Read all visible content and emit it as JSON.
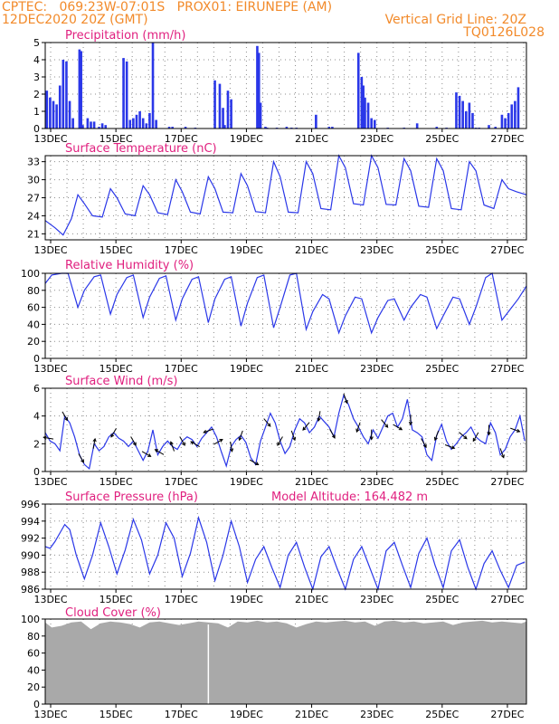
{
  "header": {
    "line1_left": "CPTEC:   069:23W-07:01S   PROX01: EIRUNEPE (AM)",
    "line2_left": "12DEC2020 20Z (GMT)",
    "line2_right": "Vertical Grid Line: 20Z",
    "line3_right": "TQ0126L028"
  },
  "colors": {
    "header": "#f28a2a",
    "title": "#e0207f",
    "series": "#2a37e8",
    "cloud": "#a9a9a9",
    "grid": "#8c8c8c",
    "wind_arrow": "#000000"
  },
  "x_axis": {
    "start": "12DEC2020 20Z",
    "end": "27DEC",
    "tick_labels": [
      "13DEC",
      "15DEC",
      "17DEC",
      "19DEC",
      "21DEC",
      "23DEC",
      "25DEC",
      "27DEC"
    ]
  },
  "chart_data": [
    {
      "id": "precip",
      "type": "bar",
      "title": "Precipitation (mm/h)",
      "ylim": [
        0,
        5
      ],
      "yticks": [
        0,
        1,
        2,
        3,
        4,
        5
      ],
      "grid": true,
      "x_units": "days since 12DEC2020 20Z",
      "x": [
        0.05,
        0.15,
        0.25,
        0.35,
        0.45,
        0.55,
        0.65,
        0.75,
        0.85,
        1.05,
        1.1,
        1.15,
        1.3,
        1.4,
        1.5,
        1.65,
        1.75,
        1.85,
        2.4,
        2.5,
        2.6,
        2.7,
        2.8,
        2.9,
        3.0,
        3.1,
        3.2,
        3.3,
        3.4,
        3.8,
        3.9,
        4.3,
        4.6,
        5.2,
        5.35,
        5.45,
        5.5,
        5.6,
        5.7,
        6.5,
        6.55,
        6.6,
        6.75,
        6.8,
        7.1,
        7.4,
        7.55,
        7.7,
        8.3,
        8.7,
        8.8,
        9.6,
        9.7,
        9.75,
        9.8,
        9.9,
        10.0,
        10.1,
        10.5,
        11.0,
        11.4,
        12.0,
        12.3,
        12.6,
        12.7,
        12.8,
        12.9,
        13.0,
        13.1,
        13.2,
        13.3,
        13.6,
        13.8,
        14.0,
        14.1,
        14.2,
        14.3,
        14.4,
        14.5
      ],
      "values": [
        2.2,
        1.8,
        1.6,
        1.4,
        2.5,
        4.0,
        3.9,
        1.6,
        0.6,
        4.6,
        4.5,
        0.2,
        0.6,
        0.4,
        0.4,
        0.1,
        0.3,
        0.2,
        4.1,
        3.9,
        0.5,
        0.6,
        0.8,
        1.0,
        0.6,
        0.3,
        0.9,
        5.0,
        0.5,
        0.1,
        0.1,
        0.1,
        0.05,
        2.8,
        2.6,
        1.2,
        0.2,
        2.2,
        1.7,
        4.8,
        4.4,
        1.5,
        0.1,
        0.05,
        0.05,
        0.1,
        0.05,
        0.05,
        0.8,
        0.1,
        0.1,
        4.4,
        3.0,
        2.5,
        1.8,
        1.5,
        0.6,
        0.5,
        0.05,
        0.05,
        0.3,
        0.1,
        0.05,
        2.1,
        1.9,
        1.6,
        1.0,
        1.5,
        0.9,
        0.05,
        0.05,
        0.2,
        0.1,
        0.8,
        0.6,
        0.9,
        1.4,
        1.6,
        2.4
      ]
    },
    {
      "id": "temp",
      "type": "line",
      "title": "Surface Temperature (nC)",
      "ylim": [
        20,
        34
      ],
      "yticks": [
        21,
        24,
        27,
        30,
        33
      ],
      "grid": true,
      "x_units": "days since 12DEC2020 20Z",
      "x": [
        0,
        0.3,
        0.55,
        0.8,
        1.0,
        1.2,
        1.45,
        1.75,
        2.0,
        2.2,
        2.45,
        2.75,
        3.0,
        3.2,
        3.45,
        3.75,
        4.0,
        4.2,
        4.45,
        4.75,
        5.0,
        5.2,
        5.45,
        5.75,
        6.0,
        6.2,
        6.45,
        6.75,
        7.0,
        7.2,
        7.45,
        7.75,
        8.0,
        8.2,
        8.45,
        8.75,
        9.0,
        9.2,
        9.45,
        9.75,
        10.0,
        10.2,
        10.45,
        10.75,
        11.0,
        11.2,
        11.45,
        11.75,
        12.0,
        12.2,
        12.45,
        12.75,
        13.0,
        13.2,
        13.45,
        13.75,
        14.0,
        14.2,
        14.45,
        14.75
      ],
      "values": [
        23.2,
        22.0,
        20.8,
        23.5,
        27.5,
        26.0,
        24.0,
        23.8,
        28.5,
        27.0,
        24.3,
        24.0,
        29.0,
        27.5,
        24.5,
        24.2,
        30.0,
        28.0,
        24.6,
        24.3,
        30.5,
        28.5,
        24.6,
        24.5,
        31.0,
        29.0,
        24.7,
        24.5,
        33.0,
        30.5,
        24.6,
        24.5,
        33.0,
        31.0,
        25.2,
        25.0,
        34.0,
        32.0,
        26.0,
        25.8,
        34.0,
        32.0,
        25.9,
        25.8,
        33.5,
        31.5,
        25.6,
        25.4,
        33.5,
        31.5,
        25.2,
        25.0,
        33.0,
        31.5,
        25.8,
        25.2,
        30.0,
        28.5,
        28.0,
        27.5
      ]
    },
    {
      "id": "rh",
      "type": "line",
      "title": "Relative Humidity (%)",
      "ylim": [
        0,
        100
      ],
      "yticks": [
        0,
        20,
        40,
        60,
        80,
        100
      ],
      "grid": true,
      "x_units": "days since 12DEC2020 20Z",
      "x": [
        0,
        0.2,
        0.5,
        0.7,
        1.0,
        1.2,
        1.5,
        1.7,
        2.0,
        2.2,
        2.5,
        2.7,
        3.0,
        3.2,
        3.5,
        3.7,
        4.0,
        4.2,
        4.5,
        4.7,
        5.0,
        5.2,
        5.5,
        5.7,
        6.0,
        6.2,
        6.5,
        6.7,
        7.0,
        7.2,
        7.5,
        7.7,
        8.0,
        8.2,
        8.5,
        8.7,
        9.0,
        9.2,
        9.5,
        9.7,
        10.0,
        10.2,
        10.5,
        10.7,
        11.0,
        11.2,
        11.5,
        11.7,
        12.0,
        12.2,
        12.5,
        12.7,
        13.0,
        13.2,
        13.5,
        13.7,
        14.0,
        14.2,
        14.5,
        14.75
      ],
      "values": [
        88,
        98,
        100,
        100,
        60,
        80,
        96,
        98,
        52,
        75,
        95,
        98,
        48,
        72,
        94,
        97,
        45,
        70,
        93,
        96,
        42,
        70,
        93,
        96,
        38,
        65,
        95,
        98,
        36,
        60,
        98,
        100,
        34,
        55,
        75,
        70,
        30,
        50,
        72,
        70,
        30,
        48,
        68,
        70,
        45,
        60,
        75,
        72,
        35,
        50,
        72,
        70,
        40,
        60,
        95,
        100,
        45,
        55,
        70,
        85
      ]
    },
    {
      "id": "wind",
      "type": "line",
      "title": "Surface Wind (m/s)",
      "ylim": [
        0,
        6
      ],
      "yticks": [
        0,
        2,
        4,
        6
      ],
      "grid": true,
      "x_units": "days since 12DEC2020 20Z",
      "x": [
        0,
        0.15,
        0.3,
        0.45,
        0.6,
        0.75,
        0.9,
        1.05,
        1.2,
        1.35,
        1.5,
        1.65,
        1.8,
        1.95,
        2.1,
        2.25,
        2.4,
        2.55,
        2.7,
        2.85,
        3.0,
        3.15,
        3.3,
        3.45,
        3.6,
        3.75,
        3.9,
        4.05,
        4.2,
        4.35,
        4.5,
        4.65,
        4.8,
        4.95,
        5.1,
        5.25,
        5.4,
        5.55,
        5.7,
        5.85,
        6.0,
        6.15,
        6.3,
        6.45,
        6.6,
        6.75,
        6.9,
        7.05,
        7.2,
        7.35,
        7.5,
        7.65,
        7.8,
        7.95,
        8.1,
        8.25,
        8.4,
        8.55,
        8.7,
        8.85,
        9.0,
        9.15,
        9.3,
        9.45,
        9.6,
        9.75,
        9.9,
        10.05,
        10.2,
        10.35,
        10.5,
        10.65,
        10.8,
        10.95,
        11.1,
        11.25,
        11.4,
        11.55,
        11.7,
        11.85,
        12.0,
        12.15,
        12.3,
        12.45,
        12.6,
        12.75,
        12.9,
        13.05,
        13.2,
        13.35,
        13.5,
        13.65,
        13.8,
        13.95,
        14.1,
        14.25,
        14.4,
        14.55,
        14.7
      ],
      "values": [
        2.8,
        2.2,
        2.0,
        1.5,
        4.0,
        3.5,
        2.5,
        1.2,
        0.5,
        0.2,
        2.0,
        1.5,
        1.8,
        2.5,
        2.8,
        2.4,
        2.2,
        1.8,
        2.2,
        1.5,
        0.8,
        1.5,
        3.0,
        1.2,
        1.8,
        2.2,
        1.8,
        1.6,
        2.2,
        2.5,
        2.3,
        1.8,
        2.4,
        2.8,
        3.2,
        2.5,
        1.4,
        0.4,
        1.8,
        2.3,
        2.6,
        2.1,
        1.0,
        0.5,
        2.2,
        3.2,
        4.2,
        3.5,
        2.2,
        1.3,
        1.8,
        3.0,
        3.8,
        3.5,
        2.8,
        3.2,
        4.0,
        3.6,
        3.2,
        2.5,
        4.2,
        5.5,
        4.8,
        3.8,
        3.2,
        2.5,
        2.0,
        3.0,
        2.4,
        3.2,
        4.0,
        4.2,
        3.2,
        3.8,
        5.2,
        3.0,
        2.8,
        2.5,
        1.2,
        0.8,
        2.6,
        3.4,
        2.2,
        1.6,
        2.0,
        2.5,
        2.8,
        3.2,
        2.5,
        2.2,
        2.0,
        3.5,
        2.8,
        1.2,
        1.6,
        2.5,
        3.0,
        4.0,
        2.2
      ]
    },
    {
      "id": "pressure",
      "type": "line",
      "title": "Surface Pressure (hPa)",
      "annotation": "Model Altitude: 164.482 m",
      "ylim": [
        986,
        996
      ],
      "yticks": [
        986,
        988,
        990,
        992,
        994,
        996
      ],
      "grid": true,
      "x_units": "days since 12DEC2020 20Z",
      "x": [
        0,
        0.15,
        0.3,
        0.45,
        0.6,
        0.75,
        0.95,
        1.2,
        1.45,
        1.7,
        1.95,
        2.2,
        2.45,
        2.7,
        2.95,
        3.2,
        3.45,
        3.7,
        3.95,
        4.2,
        4.45,
        4.7,
        4.95,
        5.2,
        5.45,
        5.7,
        5.95,
        6.2,
        6.45,
        6.7,
        6.95,
        7.2,
        7.45,
        7.7,
        7.95,
        8.2,
        8.45,
        8.7,
        8.95,
        9.2,
        9.45,
        9.7,
        9.95,
        10.2,
        10.45,
        10.7,
        10.95,
        11.2,
        11.45,
        11.7,
        11.95,
        12.2,
        12.45,
        12.7,
        12.95,
        13.2,
        13.45,
        13.7,
        13.95,
        14.2,
        14.45,
        14.7
      ],
      "values": [
        991.0,
        990.8,
        991.6,
        992.6,
        993.6,
        993.0,
        990.0,
        987.2,
        990.0,
        993.8,
        991.0,
        987.8,
        990.6,
        994.2,
        991.8,
        987.8,
        990.0,
        993.8,
        992.0,
        987.5,
        990.2,
        994.4,
        991.5,
        987.0,
        990.0,
        994.0,
        991.0,
        986.8,
        989.5,
        991.0,
        988.5,
        986.2,
        990.0,
        991.5,
        988.6,
        986.0,
        989.8,
        991.0,
        988.4,
        986.0,
        989.5,
        991.0,
        988.5,
        986.0,
        990.5,
        991.5,
        988.8,
        986.2,
        990.2,
        992.0,
        988.8,
        986.2,
        990.5,
        991.8,
        988.6,
        986.0,
        989.0,
        990.5,
        988.2,
        986.2,
        988.8,
        989.2
      ]
    },
    {
      "id": "cloud",
      "type": "area",
      "title": "Cloud Cover (%)",
      "ylim": [
        0,
        100
      ],
      "yticks": [
        0,
        20,
        40,
        60,
        80,
        100
      ],
      "grid": true,
      "x_units": "days since 12DEC2020 20Z",
      "x": [
        0,
        0.2,
        0.5,
        0.8,
        1.1,
        1.4,
        1.7,
        2.0,
        2.3,
        2.6,
        2.9,
        3.2,
        3.5,
        3.8,
        4.1,
        4.4,
        4.7,
        5.0,
        5.3,
        5.6,
        5.9,
        6.2,
        6.5,
        6.8,
        7.1,
        7.4,
        7.7,
        8.0,
        8.3,
        8.6,
        8.9,
        9.2,
        9.5,
        9.8,
        10.1,
        10.4,
        10.7,
        11.0,
        11.3,
        11.6,
        11.9,
        12.2,
        12.5,
        12.8,
        13.1,
        13.4,
        13.7,
        14.0,
        14.3,
        14.6,
        14.75
      ],
      "values": [
        96,
        90,
        92,
        96,
        97,
        88,
        95,
        97,
        96,
        94,
        90,
        96,
        97,
        95,
        93,
        95,
        97,
        96,
        95,
        90,
        97,
        96,
        98,
        96,
        97,
        95,
        90,
        94,
        97,
        96,
        97,
        98,
        96,
        97,
        92,
        97,
        98,
        96,
        97,
        95,
        96,
        97,
        93,
        96,
        97,
        98,
        96,
        97,
        96,
        95,
        97
      ]
    }
  ],
  "wind_arrows": {
    "x_units": "days since 12DEC2020 20Z",
    "direction_units": "degrees, direction arrow points toward (0 = north, 90 = east)",
    "x": [
      0.1,
      0.6,
      1.1,
      1.5,
      2.1,
      2.7,
      3.1,
      3.5,
      3.9,
      4.2,
      4.6,
      5.0,
      5.3,
      5.7,
      6.0,
      6.4,
      6.8,
      7.2,
      7.6,
      8.0,
      8.4,
      8.8,
      9.2,
      9.6,
      10.0,
      10.4,
      10.8,
      11.2,
      11.6,
      12.0,
      12.4,
      12.8,
      13.2,
      13.6,
      14.0,
      14.4
    ],
    "direction": [
      280,
      150,
      150,
      10,
      210,
      150,
      120,
      300,
      340,
      150,
      300,
      250,
      60,
      170,
      200,
      120,
      140,
      210,
      160,
      220,
      190,
      150,
      160,
      200,
      180,
      140,
      120,
      180,
      150,
      200,
      110,
      130,
      210,
      180,
      160,
      110
    ]
  }
}
